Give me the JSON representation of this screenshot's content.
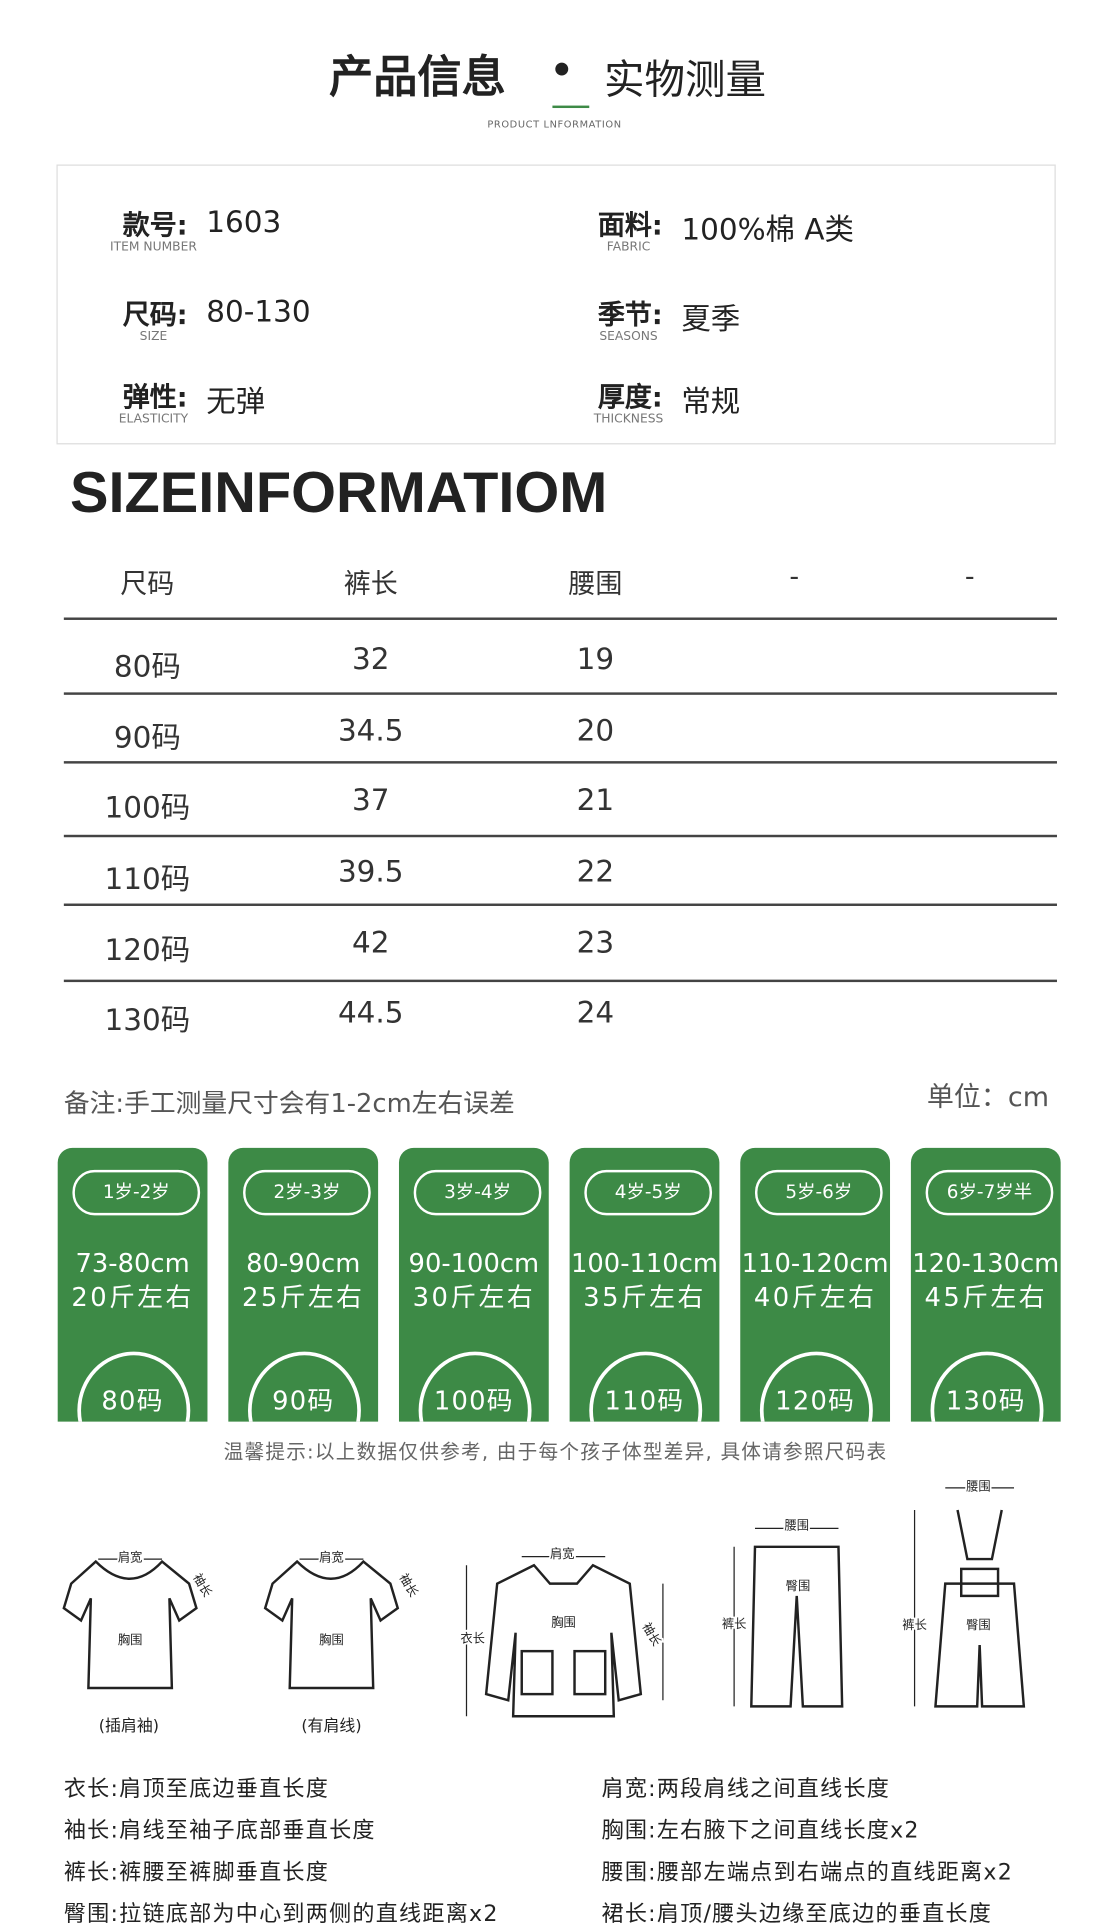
{
  "header": {
    "title": "产品信息",
    "title2": "实物测量",
    "subtitle": "PRODUCT LNFORMATION"
  },
  "specs": [
    {
      "label": "款号:",
      "label_en": "ITEM NUMBER",
      "value": "1603"
    },
    {
      "label": "面料:",
      "label_en": "FABRIC",
      "value": "100%棉  A类"
    },
    {
      "label": "尺码:",
      "label_en": "SIZE",
      "value": "80-130"
    },
    {
      "label": "季节:",
      "label_en": "SEASONS",
      "value": "夏季"
    },
    {
      "label": "弹性:",
      "label_en": "ELASTICITY",
      "value": "无弹"
    },
    {
      "label": "厚度:",
      "label_en": "THICKNESS",
      "value": "常规"
    }
  ],
  "size_table": {
    "title": "SIZEINFORMATIOM",
    "headers": [
      "尺码",
      "裤长",
      "腰围",
      "-",
      "-"
    ],
    "rows": [
      [
        "80码",
        "32",
        "19"
      ],
      [
        "90码",
        "34.5",
        "20"
      ],
      [
        "100码",
        "37",
        "21"
      ],
      [
        "110码",
        "39.5",
        "22"
      ],
      [
        "120码",
        "42",
        "23"
      ],
      [
        "130码",
        "44.5",
        "24"
      ]
    ],
    "note": "备注:手工测量尺寸会有1-2cm左右误差",
    "unit": "单位：cm"
  },
  "age_cards": [
    {
      "age": "1岁-2岁",
      "height": "73-80cm",
      "weight": "20斤左右",
      "size": "80码"
    },
    {
      "age": "2岁-3岁",
      "height": "80-90cm",
      "weight": "25斤左右",
      "size": "90码"
    },
    {
      "age": "3岁-4岁",
      "height": "90-100cm",
      "weight": "30斤左右",
      "size": "100码"
    },
    {
      "age": "4岁-5岁",
      "height": "100-110cm",
      "weight": "35斤左右",
      "size": "110码"
    },
    {
      "age": "5岁-6岁",
      "height": "110-120cm",
      "weight": "40斤左右",
      "size": "120码"
    },
    {
      "age": "6岁-7岁半",
      "height": "120-130cm",
      "weight": "45斤左右",
      "size": "130码"
    }
  ],
  "tip": "温馨提示:以上数据仅供参考, 由于每个孩子体型差异, 具体请参照尺码表",
  "diagrams": [
    {
      "labels": [
        "肩宽",
        "袖长",
        "胸围"
      ],
      "caption": "(插肩袖)"
    },
    {
      "labels": [
        "肩宽",
        "袖长",
        "胸围"
      ],
      "caption": "(有肩线)"
    },
    {
      "labels": [
        "肩宽",
        "胸围",
        "衣长",
        "袖长"
      ]
    },
    {
      "labels": [
        "腰围",
        "臀围",
        "裤长"
      ]
    },
    {
      "labels": [
        "腰围",
        "裤长",
        "臀围"
      ]
    }
  ],
  "definitions": [
    "衣长:肩顶至底边垂直长度",
    "肩宽:两段肩线之间直线长度",
    "袖长:肩线至袖子底部垂直长度",
    "胸围:左右腋下之间直线长度x2",
    "裤长:裤腰至裤脚垂直长度",
    "腰围:腰部左端点到右端点的直线距离x2",
    "臀围:拉链底部为中心到两侧的直线距离x2",
    "裙长:肩顶/腰头边缘至底边的垂直长度"
  ]
}
